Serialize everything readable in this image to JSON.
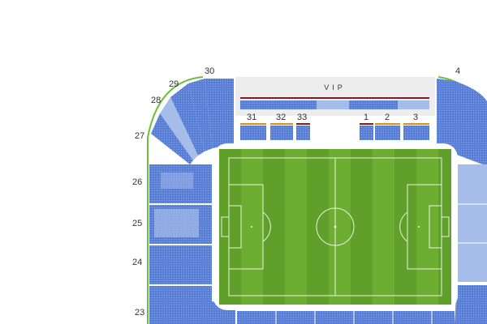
{
  "stadium_map": {
    "vip_label": "VIP",
    "section_labels": [
      "30",
      "29",
      "28",
      "27",
      "26",
      "25",
      "24",
      "23",
      "31",
      "32",
      "33",
      "1",
      "2",
      "3",
      "4"
    ],
    "colors": {
      "seat_blue": "#5a7fd6",
      "seat_light": "#a6bde9",
      "pitch_green": "#63a32b",
      "perimeter_green": "#6dbf3a",
      "vip_bar_dark": "#7a1f1f",
      "bar_orange": "#d6902a"
    }
  }
}
